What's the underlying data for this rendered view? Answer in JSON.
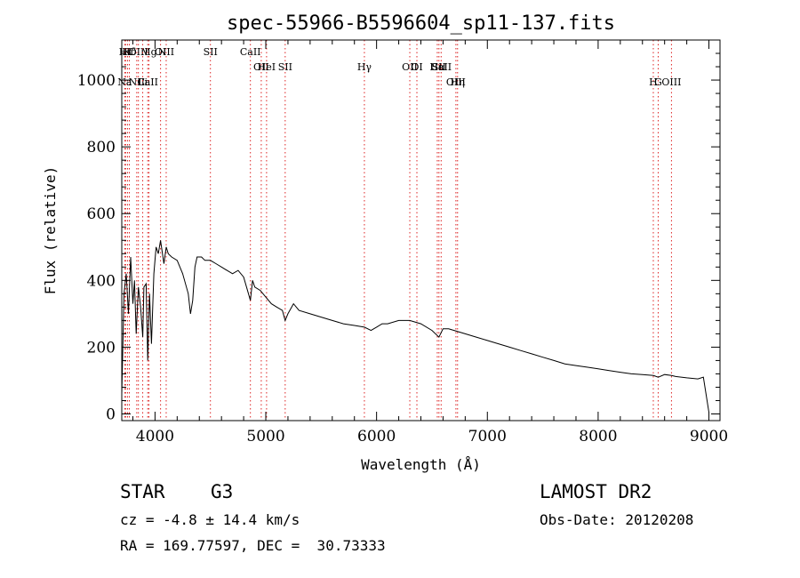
{
  "chart_data": {
    "type": "line",
    "title": "spec-55966-B5596604_sp11-137.fits",
    "xlabel": "Wavelength (Å)",
    "ylabel": "Flux (relative)",
    "xlim": [
      3700,
      9100
    ],
    "ylim": [
      -20,
      1120
    ],
    "x_ticks": [
      4000,
      5000,
      6000,
      7000,
      8000,
      9000
    ],
    "x_tick_labels": [
      "4000",
      "5000",
      "6000",
      "7000",
      "8000",
      "9000"
    ],
    "y_ticks": [
      0,
      200,
      400,
      600,
      800,
      1000
    ],
    "y_tick_labels": [
      "0",
      "200",
      "400",
      "600",
      "800",
      "1000"
    ],
    "grid": false,
    "series": [
      {
        "color": "#000000",
        "x": [
          3700,
          3720,
          3740,
          3760,
          3780,
          3800,
          3815,
          3830,
          3850,
          3870,
          3889,
          3900,
          3920,
          3934,
          3950,
          3968,
          3990,
          4010,
          4030,
          4050,
          4080,
          4101,
          4120,
          4150,
          4200,
          4250,
          4300,
          4320,
          4340,
          4360,
          4380,
          4420,
          4450,
          4500,
          4550,
          4600,
          4650,
          4700,
          4750,
          4800,
          4861,
          4880,
          4900,
          4950,
          5000,
          5050,
          5100,
          5150,
          5175,
          5200,
          5250,
          5300,
          5400,
          5500,
          5600,
          5700,
          5800,
          5890,
          5950,
          6000,
          6050,
          6100,
          6200,
          6300,
          6400,
          6500,
          6563,
          6600,
          6650,
          6700,
          6800,
          6900,
          7000,
          7100,
          7200,
          7300,
          7400,
          7500,
          7600,
          7700,
          7800,
          7900,
          8000,
          8100,
          8200,
          8300,
          8400,
          8500,
          8542,
          8600,
          8662,
          8700,
          8800,
          8900,
          8950,
          9000
        ],
        "y": [
          60,
          360,
          420,
          300,
          470,
          330,
          400,
          240,
          380,
          320,
          230,
          380,
          390,
          160,
          360,
          210,
          420,
          500,
          480,
          520,
          450,
          500,
          480,
          470,
          460,
          420,
          360,
          300,
          340,
          440,
          470,
          470,
          460,
          460,
          450,
          440,
          430,
          420,
          430,
          410,
          340,
          400,
          380,
          370,
          350,
          330,
          320,
          310,
          280,
          300,
          330,
          310,
          300,
          290,
          280,
          270,
          265,
          260,
          250,
          260,
          270,
          270,
          280,
          280,
          270,
          250,
          230,
          255,
          255,
          250,
          240,
          230,
          220,
          210,
          200,
          190,
          180,
          170,
          160,
          150,
          145,
          140,
          135,
          130,
          125,
          120,
          118,
          115,
          110,
          118,
          115,
          112,
          108,
          105,
          110,
          5
        ]
      }
    ],
    "line_markers": [
      {
        "name": "Hε",
        "x": 3735,
        "row": 0
      },
      {
        "name": "K",
        "x": 3752,
        "row": 0
      },
      {
        "name": "Hδ",
        "x": 3768,
        "row": 0
      },
      {
        "name": "OIII",
        "x": 3850,
        "row": 0
      },
      {
        "name": "Mg",
        "x": 3945,
        "row": 0
      },
      {
        "name": "OI",
        "x": 4050,
        "row": 0
      },
      {
        "name": "NII",
        "x": 4101,
        "row": 0
      },
      {
        "name": "SII",
        "x": 4500,
        "row": 0
      },
      {
        "name": "CaII",
        "x": 4861,
        "row": 0
      },
      {
        "name": "OII",
        "x": 4959,
        "row": 1
      },
      {
        "name": "HeI",
        "x": 5007,
        "row": 1
      },
      {
        "name": "SII",
        "x": 5175,
        "row": 1
      },
      {
        "name": "Hγ",
        "x": 5890,
        "row": 1
      },
      {
        "name": "OII",
        "x": 6300,
        "row": 1
      },
      {
        "name": "OI",
        "x": 6364,
        "row": 1
      },
      {
        "name": "Hα",
        "x": 6548,
        "row": 1
      },
      {
        "name": "SII",
        "x": 6563,
        "row": 1
      },
      {
        "name": "CaII",
        "x": 6583,
        "row": 1
      },
      {
        "name": "OIII",
        "x": 6716,
        "row": 2
      },
      {
        "name": "Hη",
        "x": 6731,
        "row": 2
      },
      {
        "name": "H",
        "x": 8498,
        "row": 2
      },
      {
        "name": "G",
        "x": 8542,
        "row": 2
      },
      {
        "name": "OIII",
        "x": 8662,
        "row": 2
      },
      {
        "name": "Na",
        "x": 3727,
        "row": 2
      },
      {
        "name": "NII",
        "x": 3835,
        "row": 2
      },
      {
        "name": "Li",
        "x": 3889,
        "row": 2
      },
      {
        "name": "CaII",
        "x": 3934,
        "row": 2
      }
    ]
  },
  "info": {
    "object_class": "STAR",
    "object_type": "G3",
    "redshift_line": "cz = -4.8 ± 14.4 km/s",
    "coords_line": "RA = 169.77597, DEC =  30.73333",
    "survey": "LAMOST DR2",
    "obs_date": "Obs-Date: 20120208"
  }
}
